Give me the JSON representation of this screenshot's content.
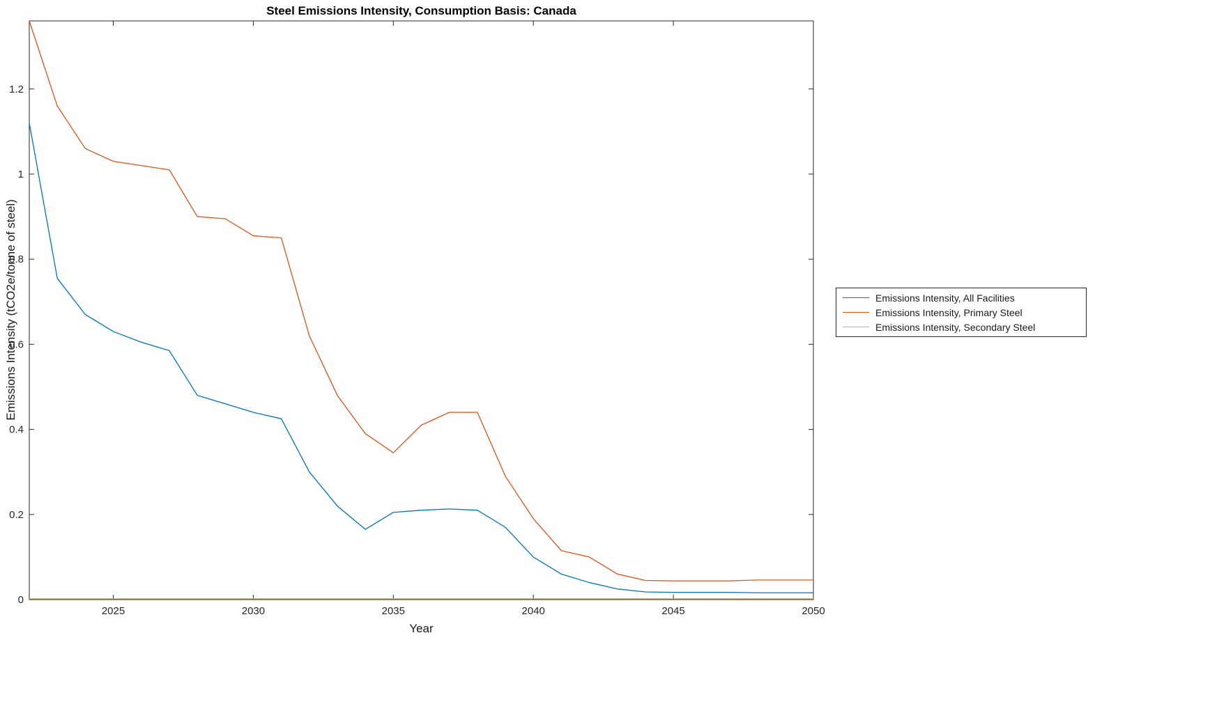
{
  "chart_data": {
    "type": "line",
    "title": "Steel Emissions Intensity, Consumption Basis: Canada",
    "xlabel": "Year",
    "ylabel": "Emissions Intensity (tCO2e/tonne of steel)",
    "xlim": [
      2022,
      2050
    ],
    "ylim": [
      0,
      1.36
    ],
    "xticks": [
      2025,
      2030,
      2035,
      2040,
      2045,
      2050
    ],
    "yticks": [
      0,
      0.2,
      0.4,
      0.6,
      0.8,
      1.0,
      1.2
    ],
    "ytick_labels": [
      "0",
      "0.2",
      "0.4",
      "0.6",
      "0.8",
      "1",
      "1.2"
    ],
    "grid": false,
    "legend_position": "right-outside",
    "axis_color": "#262626",
    "x": [
      2022,
      2023,
      2024,
      2025,
      2026,
      2027,
      2028,
      2029,
      2030,
      2031,
      2032,
      2033,
      2034,
      2035,
      2036,
      2037,
      2038,
      2039,
      2040,
      2041,
      2042,
      2043,
      2044,
      2045,
      2046,
      2047,
      2048,
      2049,
      2050
    ],
    "series": [
      {
        "name": "Emissions Intensity, All Facilities",
        "color": "#0072BD",
        "values": [
          1.12,
          0.755,
          0.67,
          0.63,
          0.605,
          0.585,
          0.48,
          0.46,
          0.44,
          0.425,
          0.3,
          0.22,
          0.165,
          0.205,
          0.21,
          0.213,
          0.21,
          0.17,
          0.1,
          0.06,
          0.04,
          0.025,
          0.018,
          0.017,
          0.017,
          0.017,
          0.016,
          0.016,
          0.016
        ]
      },
      {
        "name": "Emissions Intensity, Primary Steel",
        "color": "#D95319",
        "values": [
          1.36,
          1.16,
          1.06,
          1.03,
          1.02,
          1.01,
          0.9,
          0.895,
          0.855,
          0.85,
          0.62,
          0.48,
          0.39,
          0.345,
          0.41,
          0.44,
          0.44,
          0.29,
          0.19,
          0.115,
          0.1,
          0.06,
          0.045,
          0.044,
          0.044,
          0.044,
          0.046,
          0.046,
          0.046
        ]
      },
      {
        "name": "Emissions Intensity, Secondary Steel",
        "color": "#EDB120",
        "values": [
          0.002,
          0.002,
          0.002,
          0.002,
          0.002,
          0.002,
          0.002,
          0.002,
          0.002,
          0.002,
          0.002,
          0.002,
          0.002,
          0.002,
          0.002,
          0.002,
          0.002,
          0.002,
          0.002,
          0.002,
          0.002,
          0.002,
          0.002,
          0.002,
          0.002,
          0.002,
          0.002,
          0.002,
          0.002
        ]
      }
    ]
  }
}
